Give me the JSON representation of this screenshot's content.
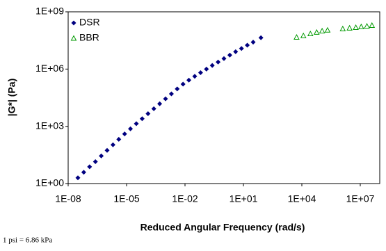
{
  "chart_data": {
    "type": "scatter",
    "x_label": "Reduced Angular Frequency (rad/s)",
    "y_label": "|G*| (Pa)",
    "footnote": "1 psi = 6.86 kPa",
    "x_log": true,
    "y_log": true,
    "grid": false,
    "legend": "top-left",
    "xlim": [
      1e-08,
      100000000.0
    ],
    "ylim": [
      1,
      1000000000.0
    ],
    "xticks": [
      {
        "value": 1e-08,
        "label": "1E-08"
      },
      {
        "value": 1e-05,
        "label": "1E-05"
      },
      {
        "value": 0.01,
        "label": "1E-02"
      },
      {
        "value": 10,
        "label": "1E+01"
      },
      {
        "value": 10000.0,
        "label": "1E+04"
      },
      {
        "value": 10000000.0,
        "label": "1E+07"
      }
    ],
    "yticks": [
      {
        "value": 1,
        "label": "1E+00"
      },
      {
        "value": 1000,
        "label": "1E+03"
      },
      {
        "value": 1000000.0,
        "label": "1E+06"
      },
      {
        "value": 1000000000.0,
        "label": "1E+09"
      }
    ],
    "series": [
      {
        "name": "DSR",
        "color": "#000080",
        "marker": "diamond",
        "x": [
          3.16e-08,
          6.31e-08,
          1.26e-07,
          2.51e-07,
          5.01e-07,
          1e-06,
          2e-06,
          3.98e-06,
          7.94e-06,
          1.58e-05,
          3.16e-05,
          6.31e-05,
          0.000126,
          0.000251,
          0.000501,
          0.001,
          0.002,
          0.00398,
          0.00794,
          0.0158,
          0.0316,
          0.0631,
          0.126,
          0.251,
          0.501,
          1,
          2,
          3.98,
          7.94,
          15.8,
          31.6,
          79.4
        ],
        "values": [
          2.0,
          3.9,
          7.6,
          14,
          28,
          55,
          107,
          209,
          398,
          741,
          1380,
          2510,
          4570,
          8320,
          15100,
          27500,
          50100,
          91200,
          162000,
          263000,
          417000,
          646000,
          1000000,
          1550000,
          2340000,
          3550000,
          5370000,
          8130000,
          12000000,
          17800000,
          25700000,
          43700000
        ]
      },
      {
        "name": "BBR",
        "color": "#009900",
        "marker": "triangle-open",
        "x": [
          5370,
          12000,
          27500,
          57500,
          110000,
          209000,
          1260000,
          2820000,
          5890000,
          11200000,
          21900000,
          39800000
        ],
        "values": [
          46800000,
          56200000,
          70800000,
          85100000,
          100000000,
          110000000,
          129000000,
          141000000,
          151000000,
          166000000,
          178000000,
          195000000
        ]
      }
    ]
  }
}
